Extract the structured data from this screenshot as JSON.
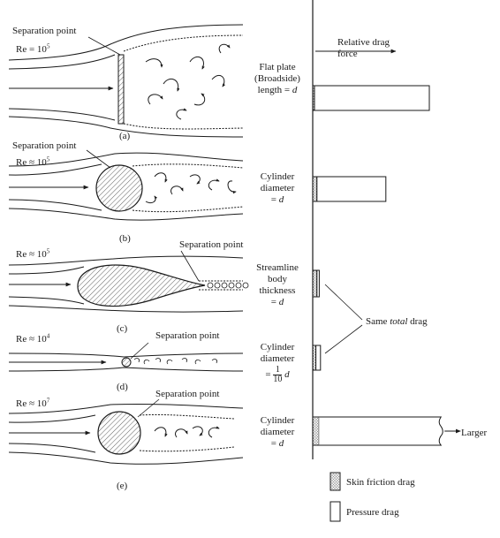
{
  "header": {
    "relative_drag_label": "Relative drag force"
  },
  "panels": [
    {
      "id": "a",
      "re_prefix": "Re = 10",
      "re_exp": "5",
      "sep_label": "Separation point",
      "caption": "(a)",
      "body": [
        "Flat plate",
        "(Broadside)",
        "length = "
      ],
      "body_var": "d",
      "bar": {
        "friction": 0.01,
        "pressure": 1.0
      }
    },
    {
      "id": "b",
      "re_prefix": "Re ≈ 10",
      "re_exp": "5",
      "sep_label": "Separation point",
      "caption": "(b)",
      "body": [
        "Cylinder",
        "diameter",
        "= "
      ],
      "body_var": "d",
      "bar": {
        "friction": 0.08,
        "pressure": 0.6
      }
    },
    {
      "id": "c",
      "re_prefix": "Re ≈ 10",
      "re_exp": "5",
      "sep_label": "Separation point",
      "caption": "(c)",
      "body": [
        "Streamline",
        "body",
        "thickness",
        "= "
      ],
      "body_var": "d",
      "bar": {
        "friction": 0.08,
        "pressure": 0.02
      }
    },
    {
      "id": "d",
      "re_prefix": "Re ≈ 10",
      "re_exp": "4",
      "sep_label": "Separation point",
      "caption": "(d)",
      "body": [
        "Cylinder",
        "diameter",
        "="
      ],
      "frac_num": "1",
      "frac_den": "10",
      "body_var": "d",
      "bar": {
        "friction": 0.06,
        "pressure": 0.04
      }
    },
    {
      "id": "e",
      "re_prefix": "Re ≈ 10",
      "re_exp": "7",
      "sep_label": "Separation point",
      "caption": "(e)",
      "body": [
        "Cylinder",
        "diameter",
        "= "
      ],
      "body_var": "d",
      "bar": {
        "friction": 0.12,
        "pressure": 1.0
      },
      "larger_label": "Larger"
    }
  ],
  "same_total": {
    "prefix": "Same ",
    "italic": "total",
    "suffix": " drag"
  },
  "legend": [
    {
      "label": "Skin friction drag",
      "pattern": "dots"
    },
    {
      "label": "Pressure drag",
      "pattern": "blank"
    }
  ]
}
